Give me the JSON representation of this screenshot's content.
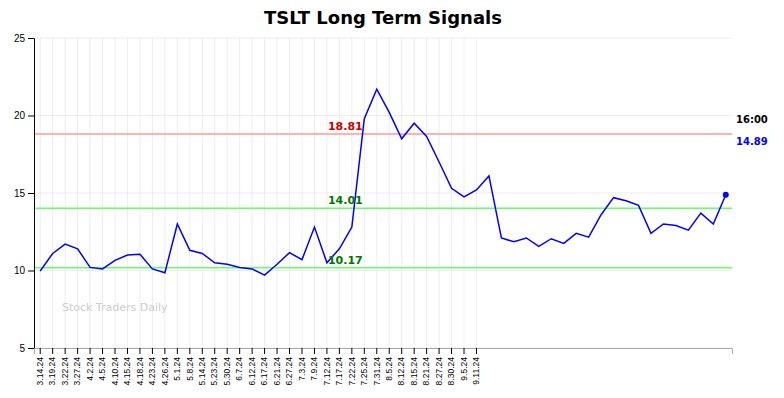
{
  "chart_data": {
    "type": "line",
    "title": "TSLT Long Term Signals",
    "categories": [
      "3.14.24",
      "3.19.24",
      "3.22.24",
      "3.27.24",
      "4.2.24",
      "4.5.24",
      "4.10.24",
      "4.15.24",
      "4.18.24",
      "4.23.24",
      "4.26.24",
      "5.1.24",
      "5.8.24",
      "5.14.24",
      "5.23.24",
      "5.30.24",
      "6.7.24",
      "6.12.24",
      "6.17.24",
      "6.21.24",
      "6.27.24",
      "7.3.24",
      "7.9.24",
      "7.12.24",
      "7.17.24",
      "7.22.24",
      "7.25.24",
      "7.31.24",
      "8.5.24",
      "8.12.24",
      "8.15.24",
      "8.21.24",
      "8.27.24",
      "8.30.24",
      "9.5.24",
      "9.11.24",
      null,
      null,
      null,
      null,
      null,
      null,
      null,
      null,
      null,
      null,
      null,
      null,
      null,
      null,
      null,
      null,
      null,
      null,
      null,
      null
    ],
    "values": [
      9.97,
      11.1,
      11.7,
      11.4,
      10.2,
      10.1,
      10.65,
      11.0,
      11.05,
      10.1,
      9.85,
      13.0,
      11.3,
      11.1,
      10.5,
      10.4,
      10.2,
      10.1,
      9.7,
      10.4,
      11.15,
      10.7,
      12.8,
      10.5,
      11.4,
      12.8,
      19.8,
      21.7,
      20.2,
      18.5,
      19.5,
      18.65,
      17.0,
      15.3,
      14.75,
      15.2,
      16.1,
      12.1,
      11.85,
      12.1,
      11.55,
      12.05,
      11.75,
      12.4,
      12.15,
      13.6,
      14.7,
      14.5,
      14.2,
      12.4,
      13.0,
      12.9,
      12.6,
      13.7,
      13.0,
      14.89
    ],
    "color": "blue",
    "ylim": [
      5,
      25
    ],
    "yticks": [
      5,
      10,
      15,
      20,
      25
    ],
    "grid": true,
    "reference_lines": [
      {
        "value": 18.81,
        "label": "18.81",
        "color": "#ff9999",
        "label_color": "#cc0000"
      },
      {
        "value": 14.01,
        "label": "14.01",
        "color": "#66ff66",
        "label_color": "#007700"
      },
      {
        "value": 10.17,
        "label": "10.17",
        "color": "#66ff66",
        "label_color": "#007700"
      }
    ],
    "last_time_label": "16:00",
    "watermark": "Stock Traders Daily"
  }
}
